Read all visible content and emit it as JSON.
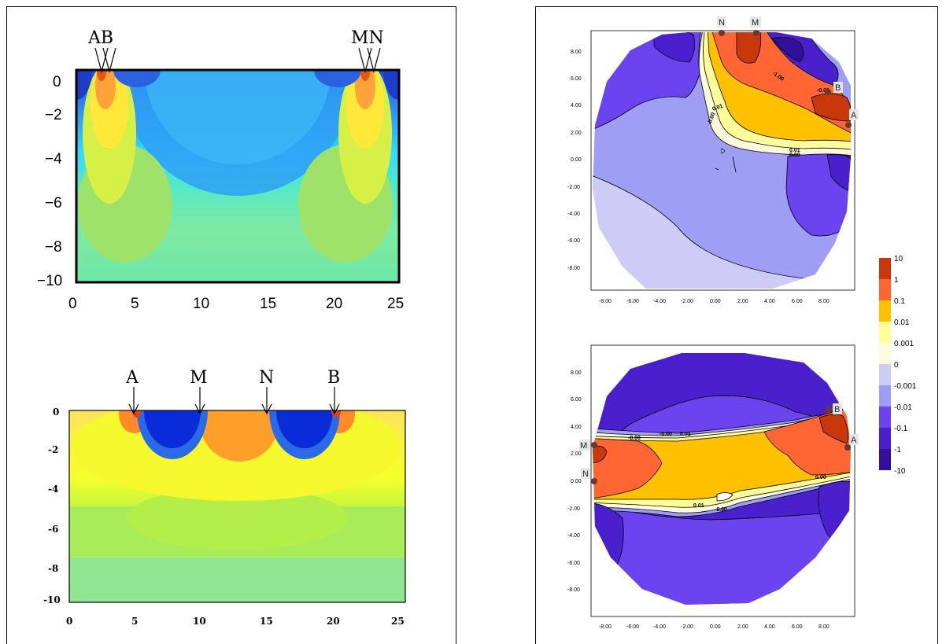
{
  "left_panel": {
    "top_plot": {
      "electrodes": [
        "AB",
        "MN"
      ],
      "y_ticks": [
        "0",
        "−2",
        "−4",
        "−6",
        "−8",
        "−10"
      ],
      "x_ticks": [
        "0",
        "5",
        "10",
        "15",
        "20",
        "25"
      ]
    },
    "bottom_plot": {
      "electrodes": [
        "A",
        "M",
        "N",
        "B"
      ],
      "y_ticks": [
        "0",
        "-2",
        "-4",
        "-6",
        "-8",
        "-10"
      ],
      "x_ticks": [
        "0",
        "5",
        "10",
        "15",
        "20",
        "25"
      ]
    }
  },
  "right_panel": {
    "top_plot": {
      "electrodes": [
        "N",
        "M",
        "B",
        "A"
      ],
      "contour_labels": [
        "-1.00",
        "-0.01",
        "0.01",
        "-0.00",
        "0.01",
        "0.00"
      ],
      "y_ticks": [
        "8.00",
        "6.00",
        "4.00",
        "2.00",
        "0.00",
        "-2.00",
        "-4.00",
        "-6.00",
        "-8.00"
      ],
      "x_ticks": [
        "-8.00",
        "-6.00",
        "-4.00",
        "-2.00",
        "0.00",
        "2.00",
        "4.00",
        "6.00",
        "8.00"
      ]
    },
    "bottom_plot": {
      "electrodes": [
        "M",
        "N",
        "B",
        "A"
      ],
      "contour_labels": [
        "-0.00",
        "-0.00",
        "0.01",
        "0.00",
        "0.01",
        "-0.00"
      ],
      "y_ticks": [
        "8.00",
        "6.00",
        "4.00",
        "2.00",
        "0.00",
        "-2.00",
        "-4.00",
        "-6.00",
        "-8.00"
      ],
      "x_ticks": [
        "-8.00",
        "-6.00",
        "-4.00",
        "-2.00",
        "0.00",
        "2.00",
        "4.00",
        "6.00",
        "8.00"
      ]
    },
    "legend": {
      "labels": [
        "10",
        "1",
        "0.1",
        "0.01",
        "0.001",
        "0",
        "-0.001",
        "-0.01",
        "-0.1",
        "-1",
        "-10"
      ],
      "colors": [
        "#c8380c",
        "#ff6633",
        "#ffc000",
        "#ffff99",
        "#fffadc",
        "#ccccf6",
        "#9e9ef5",
        "#6b44f0",
        "#4a20cc",
        "#34109a"
      ]
    }
  }
}
